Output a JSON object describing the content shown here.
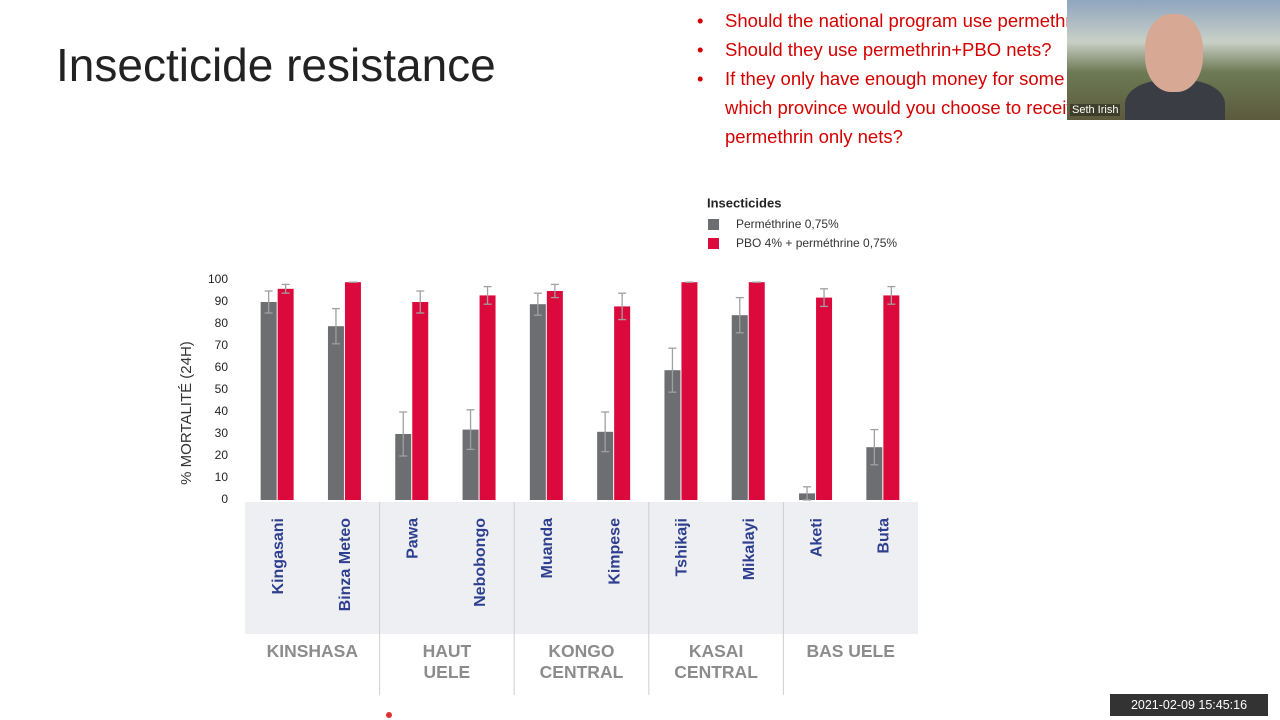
{
  "slide": {
    "title": "Insecticide resistance",
    "bullets": [
      "Should the national program use permethrin only nets?",
      "Should they use permethrin+PBO nets?",
      "If they only have enough money for some PBO nets, which province would you choose to receive permethrin only nets?"
    ]
  },
  "video": {
    "name": "Seth Irish"
  },
  "timestamp": "2021-02-09 15:45:16",
  "chart_data": {
    "type": "bar",
    "y_label": "% MORTALITÉ (24H)",
    "legend_title": "Insecticides",
    "categories": [
      "Kingasani",
      "Binza Meteo",
      "Pawa",
      "Nebobongo",
      "Muanda",
      "Kimpese",
      "Tshikaji",
      "Mikalayi",
      "Aketi",
      "Buta"
    ],
    "groups": [
      "KINSHASA",
      "HAUT UELE",
      "KONGO CENTRAL",
      "KASAI CENTRAL",
      "BAS UELE"
    ],
    "series": [
      {
        "name": "Perméthrine 0,75%",
        "color": "#6d6e71",
        "values": [
          90,
          79,
          30,
          32,
          89,
          31,
          59,
          84,
          3,
          24
        ],
        "errors": [
          5,
          8,
          10,
          9,
          5,
          9,
          10,
          8,
          3,
          8
        ]
      },
      {
        "name": "PBO 4% + perméthrine 0,75%",
        "color": "#dc0a3c",
        "values": [
          96,
          99,
          90,
          93,
          95,
          88,
          99,
          99,
          92,
          93
        ],
        "errors": [
          2,
          0,
          5,
          4,
          3,
          6,
          0,
          0,
          4,
          4
        ]
      }
    ],
    "ylim": [
      0,
      100
    ],
    "yticks": [
      0,
      10,
      20,
      30,
      40,
      50,
      60,
      70,
      80,
      90,
      100
    ],
    "grid": false
  }
}
